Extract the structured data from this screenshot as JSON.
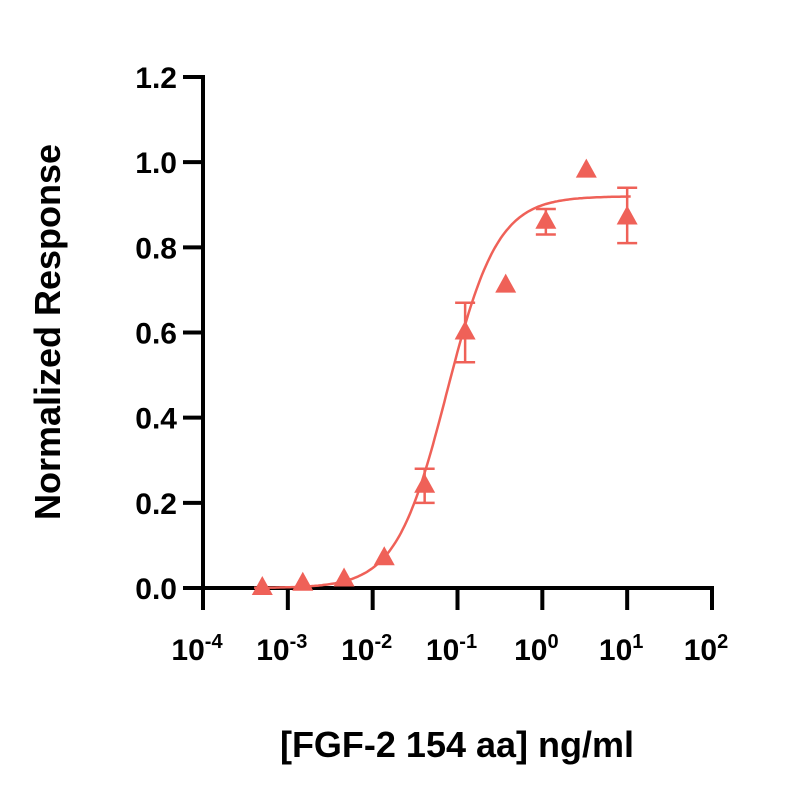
{
  "chart_data": {
    "type": "scatter",
    "title": "",
    "xlabel": "[FGF-2 154 aa] ng/ml",
    "ylabel": "Normalized Response",
    "xscale": "log",
    "xlim": [
      0.0001,
      100
    ],
    "ylim": [
      0,
      1.2
    ],
    "grid": false,
    "legend": null,
    "x_ticks": [
      {
        "base": "10",
        "exp": "-4",
        "value": 0.0001
      },
      {
        "base": "10",
        "exp": "-3",
        "value": 0.001
      },
      {
        "base": "10",
        "exp": "-2",
        "value": 0.01
      },
      {
        "base": "10",
        "exp": "-1",
        "value": 0.1
      },
      {
        "base": "10",
        "exp": "0",
        "value": 1
      },
      {
        "base": "10",
        "exp": "1",
        "value": 10
      },
      {
        "base": "10",
        "exp": "2",
        "value": 100
      }
    ],
    "y_ticks": [
      "0.0",
      "0.2",
      "0.4",
      "0.6",
      "0.8",
      "1.0",
      "1.2"
    ],
    "series": [
      {
        "name": "FGF-2 154 aa",
        "marker": "triangle",
        "color": "#ef6158",
        "x": [
          0.0005,
          0.0015,
          0.0046,
          0.0137,
          0.041,
          0.123,
          0.37,
          1.1,
          3.3,
          10
        ],
        "y": [
          0.0,
          0.01,
          0.02,
          0.07,
          0.24,
          0.6,
          0.71,
          0.86,
          0.98,
          0.87
        ],
        "error_low": [
          null,
          null,
          null,
          null,
          0.2,
          0.53,
          null,
          0.83,
          null,
          0.81
        ],
        "error_high": [
          null,
          null,
          null,
          null,
          0.28,
          0.67,
          null,
          0.89,
          null,
          0.94
        ]
      }
    ],
    "fit": {
      "type": "4PL",
      "bottom": 0.0,
      "top": 0.92,
      "ec50": 0.075,
      "hill": 1.45
    }
  },
  "labels": {
    "ylabel": "Normalized Response",
    "xlabel": "[FGF-2 154 aa] ng/ml"
  }
}
